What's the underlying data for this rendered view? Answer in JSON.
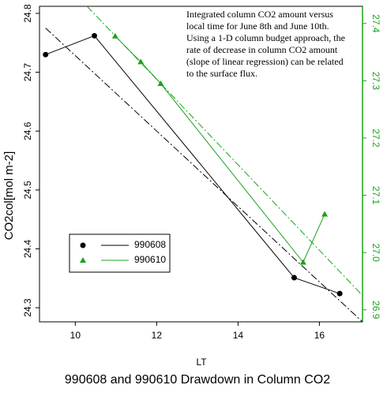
{
  "chart_data": {
    "type": "line",
    "title": "990608 and 990610 Drawdown in Column CO2",
    "x_label": "LT",
    "y_label": "CO2col[mol m-2]",
    "annotation": [
      "Integrated column CO2 amount versus",
      "local time for June 8th and June 10th.",
      "Using a 1-D column budget approach, the",
      "rate of decrease in column CO2 amount",
      "(slope of linear regression) can be related",
      "to the surface flux."
    ],
    "xlim": [
      9.12,
      17.06
    ],
    "xticks": [
      10,
      12,
      14,
      16
    ],
    "ylim": [
      24.276,
      24.812
    ],
    "yticks": [
      24.3,
      24.4,
      24.5,
      24.6,
      24.7,
      24.8
    ],
    "y2lim": [
      26.879,
      27.43
    ],
    "y2ticks": [
      {
        "value": 26.9,
        "label": "26.9"
      },
      {
        "value": 27,
        "label": "27.0"
      },
      27.1,
      27.2,
      27.3,
      27.4
    ],
    "y2_color": "#1aa31a",
    "legend": "lower-left",
    "series": [
      {
        "name": "990608",
        "color": "#000000",
        "marker": "circle",
        "x": [
          9.27,
          10.47,
          15.38,
          16.5
        ],
        "values": [
          24.73,
          24.762,
          24.351,
          24.324
        ]
      },
      {
        "name": "990610",
        "color": "#1aa31a",
        "marker": "triangle",
        "axis": "y2",
        "x": [
          10.98,
          11.61,
          12.1,
          15.6,
          16.13
        ],
        "values": [
          27.378,
          27.333,
          27.295,
          26.983,
          27.067
        ]
      }
    ],
    "fits": [
      {
        "color": "#000000",
        "style": "dashdot",
        "x": [
          9.27,
          17.06
        ],
        "values": [
          24.775,
          24.276
        ]
      },
      {
        "color": "#1aa31a",
        "style": "dashdot",
        "axis": "y2",
        "x": [
          10.29,
          17.06
        ],
        "values": [
          27.43,
          26.925
        ]
      }
    ]
  }
}
